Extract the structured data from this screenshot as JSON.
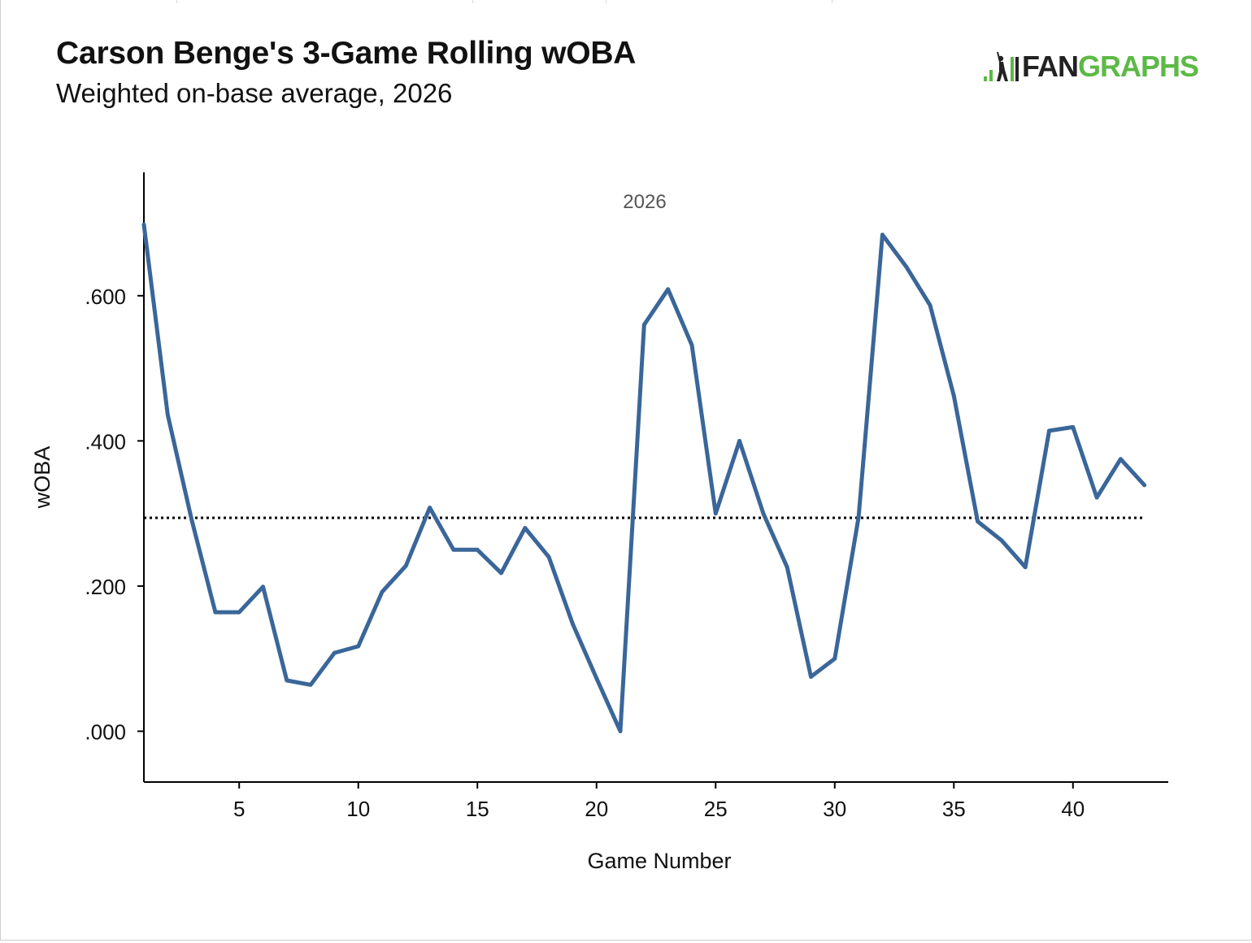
{
  "header": {
    "title": "Carson Benge's 3-Game Rolling wOBA",
    "subtitle": "Weighted on-base average, 2026"
  },
  "logo": {
    "text_dark": "FAN",
    "text_green": "GRAPHS",
    "icon": "batter-bars-icon",
    "brand_green": "#5cb946",
    "brand_dark": "#222222"
  },
  "chart_data": {
    "type": "line",
    "panel_label": "2026",
    "xlabel": "Game Number",
    "ylabel": "wOBA",
    "xlim": [
      1,
      44
    ],
    "ylim": [
      -0.07,
      0.77
    ],
    "x_ticks": [
      5,
      10,
      15,
      20,
      25,
      30,
      35,
      40
    ],
    "x_tick_labels": [
      "5",
      "10",
      "15",
      "20",
      "25",
      "30",
      "35",
      "40"
    ],
    "y_ticks": [
      0,
      0.2,
      0.4,
      0.6
    ],
    "y_tick_labels": [
      ".000",
      ".200",
      ".400",
      ".600"
    ],
    "reference_line": {
      "y": 0.294,
      "style": "dotted",
      "color": "#000000"
    },
    "grid": false,
    "series": [
      {
        "color": "#3a6699",
        "x": [
          1,
          2,
          3,
          4,
          5,
          6,
          7,
          8,
          9,
          10,
          11,
          12,
          13,
          14,
          15,
          16,
          17,
          18,
          19,
          20,
          21,
          22,
          23,
          24,
          25,
          26,
          27,
          28,
          29,
          30,
          31,
          32,
          33,
          34,
          35,
          36,
          37,
          38,
          39,
          40,
          41,
          42,
          43
        ],
        "y": [
          0.698,
          0.436,
          0.292,
          0.164,
          0.164,
          0.199,
          0.07,
          0.064,
          0.108,
          0.117,
          0.192,
          0.228,
          0.308,
          0.25,
          0.25,
          0.218,
          0.28,
          0.24,
          0.148,
          0.073,
          0.0,
          0.56,
          0.609,
          0.532,
          0.3,
          0.4,
          0.3,
          0.226,
          0.075,
          0.1,
          0.295,
          0.684,
          0.64,
          0.587,
          0.462,
          0.289,
          0.263,
          0.226,
          0.414,
          0.419,
          0.322,
          0.375,
          0.339
        ]
      }
    ]
  }
}
